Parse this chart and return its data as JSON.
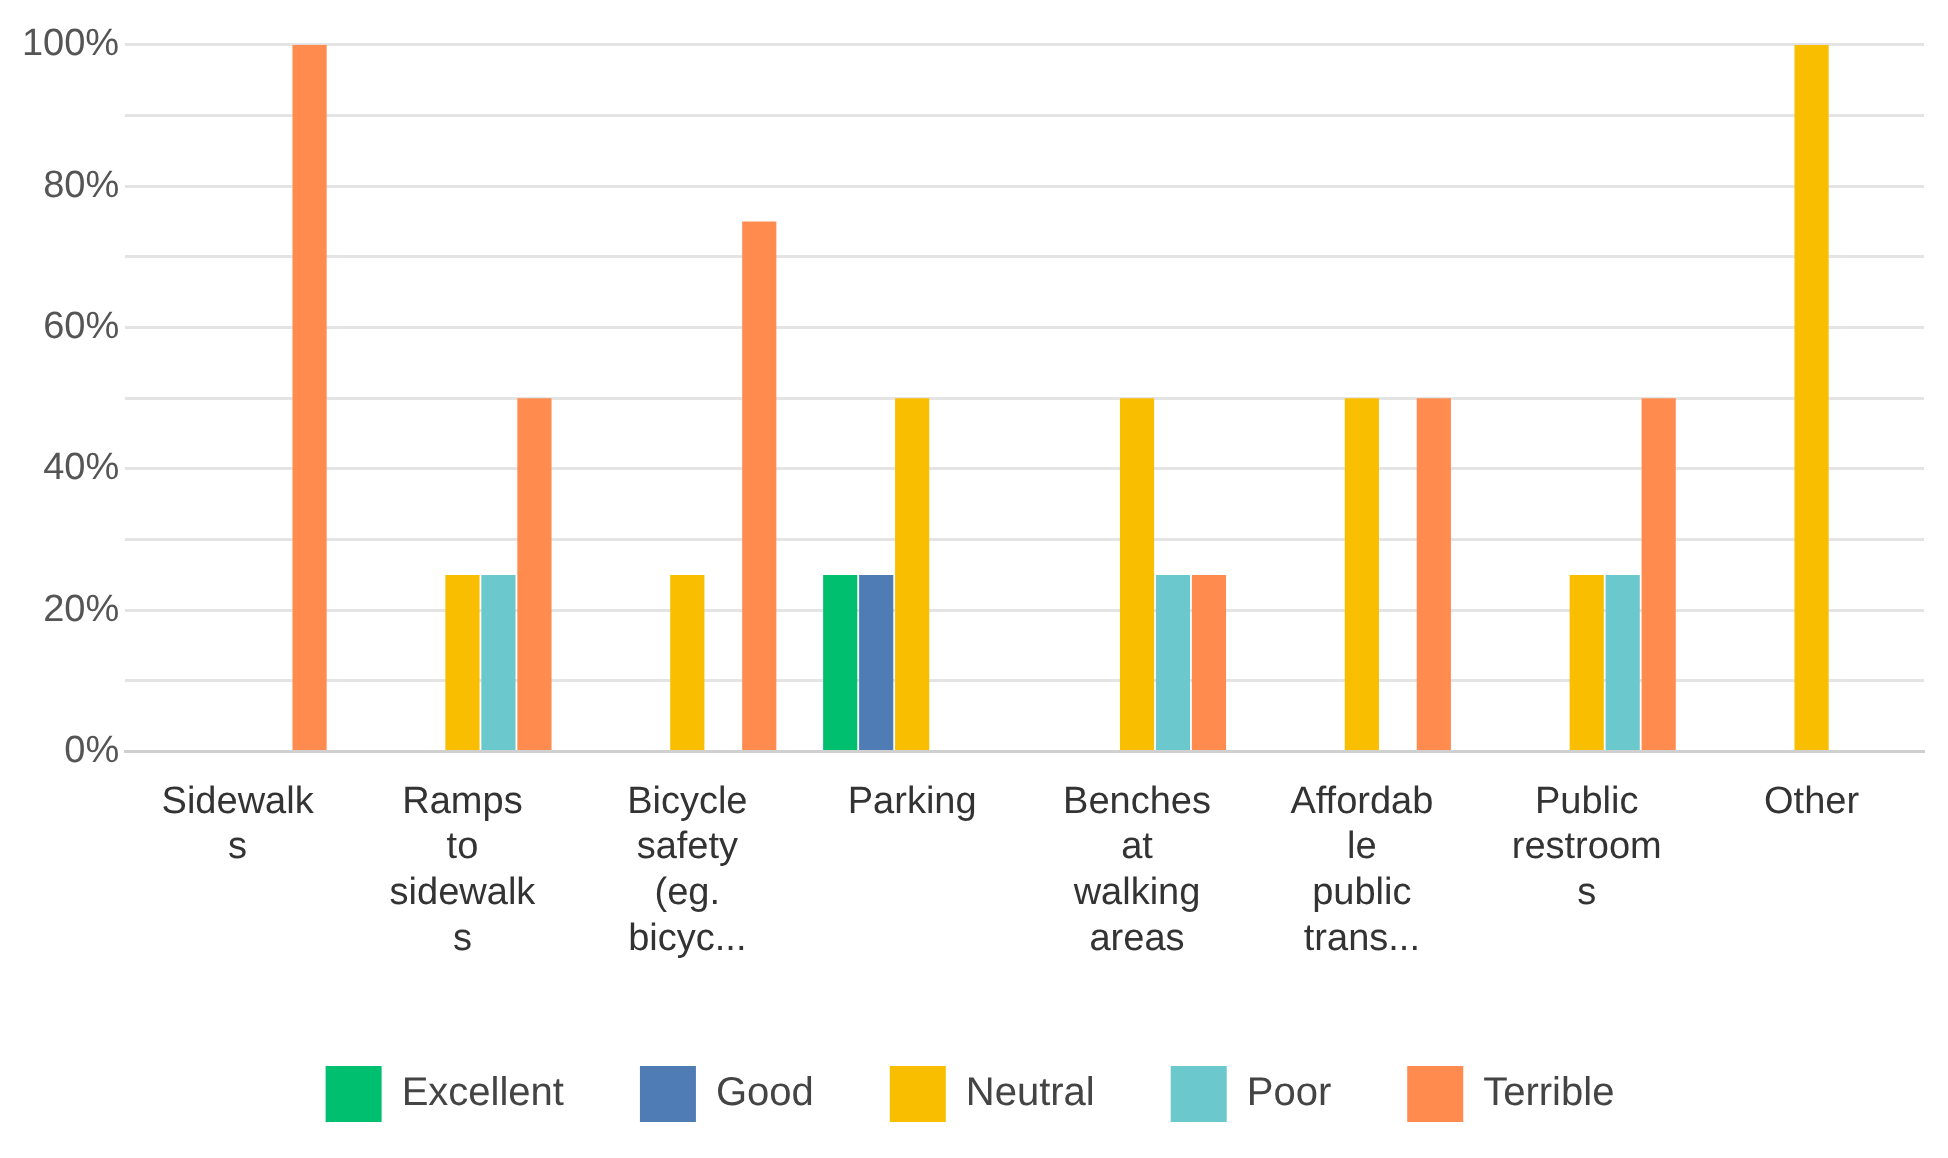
{
  "chart_data": {
    "type": "bar",
    "categories": [
      "Sidewalks",
      "Ramps to sidewalks",
      "Bicycle safety (eg. bicyc...",
      "Parking",
      "Benches at walking areas",
      "Affordable public trans...",
      "Public restrooms",
      "Other"
    ],
    "series": [
      {
        "name": "Excellent",
        "color": "#00bf6f",
        "values": [
          0,
          0,
          0,
          25,
          0,
          0,
          0,
          0
        ]
      },
      {
        "name": "Good",
        "color": "#507cb6",
        "values": [
          0,
          0,
          0,
          25,
          0,
          0,
          0,
          0
        ]
      },
      {
        "name": "Neutral",
        "color": "#f9be00",
        "values": [
          0,
          25,
          25,
          50,
          50,
          50,
          25,
          100
        ]
      },
      {
        "name": "Poor",
        "color": "#6bc8cd",
        "values": [
          0,
          25,
          0,
          0,
          25,
          0,
          25,
          0
        ]
      },
      {
        "name": "Terrible",
        "color": "#ff8b4f",
        "values": [
          100,
          50,
          75,
          0,
          25,
          50,
          50,
          0
        ]
      }
    ],
    "ylim": [
      0,
      100
    ],
    "yticks": [
      {
        "value": 0,
        "label": "0%"
      },
      {
        "value": 10,
        "label": null
      },
      {
        "value": 20,
        "label": "20%"
      },
      {
        "value": 30,
        "label": null
      },
      {
        "value": 40,
        "label": "40%"
      },
      {
        "value": 50,
        "label": null
      },
      {
        "value": 60,
        "label": "60%"
      },
      {
        "value": 70,
        "label": null
      },
      {
        "value": 80,
        "label": "80%"
      },
      {
        "value": 90,
        "label": null
      },
      {
        "value": 100,
        "label": "100%"
      }
    ],
    "grid": "y",
    "legend": "bottom"
  }
}
